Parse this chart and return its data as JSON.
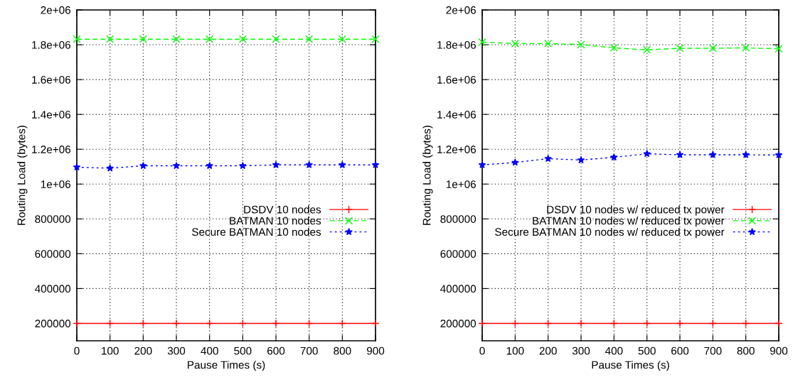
{
  "chart_data": [
    {
      "type": "line",
      "xlabel": "Pause Times (s)",
      "ylabel": "Routing Load (bytes)",
      "x": [
        0,
        100,
        200,
        300,
        400,
        500,
        600,
        700,
        800,
        900
      ],
      "series": [
        {
          "name": "DSDV 10 nodes",
          "color": "#ff0000",
          "marker": "plus",
          "line_style": "solid",
          "values": [
            200000,
            200000,
            200000,
            200000,
            200000,
            200000,
            200000,
            200000,
            200000,
            200000
          ]
        },
        {
          "name": "BATMAN 10 nodes",
          "color": "#00ff00",
          "marker": "cross",
          "line_style": "dashed",
          "values": [
            1832000,
            1832000,
            1832000,
            1832000,
            1832000,
            1832000,
            1832000,
            1832000,
            1832000,
            1832000
          ]
        },
        {
          "name": "Secure BATMAN 10 nodes",
          "color": "#0000ff",
          "marker": "star",
          "line_style": "dotted",
          "values": [
            1097000,
            1091000,
            1105000,
            1105000,
            1105000,
            1105000,
            1110000,
            1110000,
            1110000,
            1110000
          ]
        }
      ],
      "xlim": [
        0,
        900
      ],
      "xticks": [
        0,
        100,
        200,
        300,
        400,
        500,
        600,
        700,
        800,
        900
      ],
      "ylim": [
        100000,
        2000000
      ],
      "yticks": [
        200000,
        400000,
        600000,
        800000,
        {
          "value": 1000000,
          "label": "1e+06"
        },
        {
          "value": 1200000,
          "label": "1.2e+06"
        },
        {
          "value": 1400000,
          "label": "1.4e+06"
        },
        {
          "value": 1600000,
          "label": "1.6e+06"
        },
        {
          "value": 1800000,
          "label": "1.8e+06"
        },
        {
          "value": 2000000,
          "label": "2e+06"
        }
      ],
      "grid": true,
      "legend": "right"
    },
    {
      "type": "line",
      "xlabel": "Pause Times (s)",
      "ylabel": "Routing Load (bytes)",
      "x": [
        0,
        100,
        200,
        300,
        400,
        500,
        600,
        700,
        800,
        900
      ],
      "series": [
        {
          "name": "DSDV 10 nodes w/ reduced tx power",
          "color": "#ff0000",
          "marker": "plus",
          "line_style": "solid",
          "values": [
            200000,
            200000,
            200000,
            200000,
            200000,
            200000,
            200000,
            200000,
            200000,
            200000
          ]
        },
        {
          "name": "BATMAN 10 nodes w/ reduced tx power",
          "color": "#00ff00",
          "marker": "cross",
          "line_style": "dashed",
          "values": [
            1815000,
            1807000,
            1807000,
            1801000,
            1782000,
            1771000,
            1780000,
            1780000,
            1782000,
            1777000
          ]
        },
        {
          "name": "Secure BATMAN 10 nodes w/ reduced tx power",
          "color": "#0000ff",
          "marker": "star",
          "line_style": "dotted",
          "values": [
            1110000,
            1124000,
            1146000,
            1138000,
            1154000,
            1174000,
            1168000,
            1168000,
            1168000,
            1167000
          ]
        }
      ],
      "xlim": [
        0,
        900
      ],
      "xticks": [
        0,
        100,
        200,
        300,
        400,
        500,
        600,
        700,
        800,
        900
      ],
      "ylim": [
        100000,
        2000000
      ],
      "yticks": [
        200000,
        400000,
        600000,
        800000,
        {
          "value": 1000000,
          "label": "1e+06"
        },
        {
          "value": 1200000,
          "label": "1.2e+06"
        },
        {
          "value": 1400000,
          "label": "1.4e+06"
        },
        {
          "value": 1600000,
          "label": "1.6e+06"
        },
        {
          "value": 1800000,
          "label": "1.8e+06"
        },
        {
          "value": 2000000,
          "label": "2e+06"
        }
      ],
      "grid": true,
      "legend": "right"
    }
  ]
}
